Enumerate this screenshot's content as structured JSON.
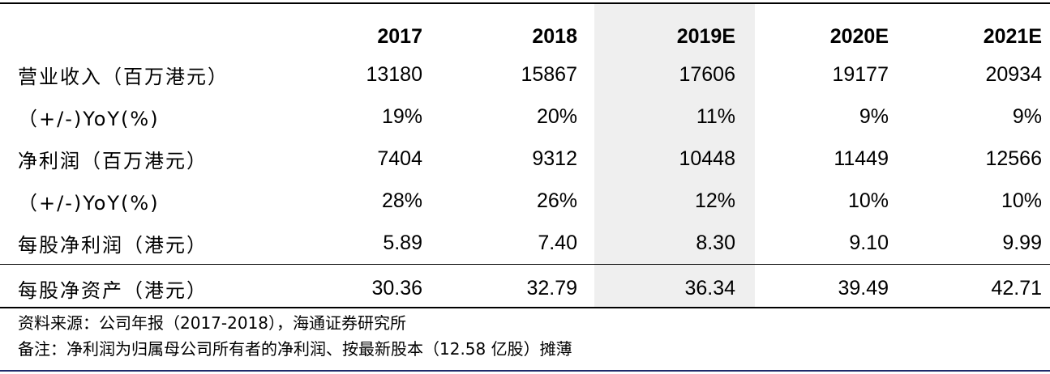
{
  "table": {
    "headers": [
      "",
      "2017",
      "2018",
      "2019E",
      "2020E",
      "2021E"
    ],
    "rows": [
      {
        "label": "营业收入（百万港元）",
        "values": [
          "13180",
          "15867",
          "17606",
          "19177",
          "20934"
        ]
      },
      {
        "label": "（+/-)YoY(%)",
        "values": [
          "19%",
          "20%",
          "11%",
          "9%",
          "9%"
        ]
      },
      {
        "label": "净利润（百万港元）",
        "values": [
          "7404",
          "9312",
          "10448",
          "11449",
          "12566"
        ]
      },
      {
        "label": "（+/-)YoY(%)",
        "values": [
          "28%",
          "26%",
          "12%",
          "10%",
          "10%"
        ]
      },
      {
        "label": "每股净利润（港元）",
        "values": [
          "5.89",
          "7.40",
          "8.30",
          "9.10",
          "9.99"
        ]
      },
      {
        "label": "每股净资产（港元）",
        "values": [
          "30.36",
          "32.79",
          "36.34",
          "39.49",
          "42.71"
        ]
      }
    ]
  },
  "notes": {
    "source": "资料来源：公司年报（2017-2018），海通证券研究所",
    "remark": "备注：净利润为归属母公司所有者的净利润、按最新股本（12.58 亿股）摊薄"
  },
  "colors": {
    "highlight_column": "#efefef",
    "footer_rule": "#1f2a6b"
  }
}
